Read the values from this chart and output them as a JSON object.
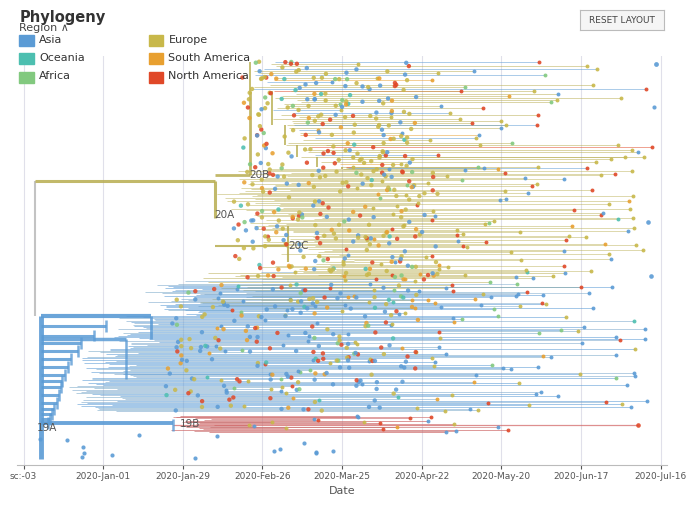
{
  "title": "Phylogeny",
  "region_label": "Region ∧",
  "xlabel": "Date",
  "background_color": "#ffffff",
  "grid_color": "#e0e0ea",
  "legend_left": [
    {
      "label": "Asia",
      "color": "#5b9bd5"
    },
    {
      "label": "Oceania",
      "color": "#4dbfb0"
    },
    {
      "label": "Africa",
      "color": "#82c97f"
    }
  ],
  "legend_right": [
    {
      "label": "Europe",
      "color": "#c8b84a"
    },
    {
      "label": "South America",
      "color": "#e8a030"
    },
    {
      "label": "North America",
      "color": "#e04828"
    }
  ],
  "x_tick_labels": [
    "sc:-03",
    "2020-Jan-01",
    "2020-Jan-29",
    "2020-Feb-26",
    "2020-Mar-25",
    "2020-Apr-22",
    "2020-May-20",
    "2020-Jun-17",
    "2020-Jul-16"
  ],
  "clade_labels": [
    {
      "text": "20B",
      "xf": 0.355,
      "yf": 0.715
    },
    {
      "text": "20C",
      "xf": 0.415,
      "yf": 0.535
    },
    {
      "text": "20A",
      "xf": 0.3,
      "yf": 0.615
    },
    {
      "text": "19A",
      "xf": 0.02,
      "yf": 0.078
    },
    {
      "text": "19B",
      "xf": 0.245,
      "yf": 0.088
    }
  ],
  "reset_button": "RESET LAYOUT",
  "euro_branch_color": "#b8ad50",
  "asia_branch_color": "#7ba8cc",
  "asia_branch_color2": "#5b9bd5",
  "mixed_branch_color": "#9ab080"
}
